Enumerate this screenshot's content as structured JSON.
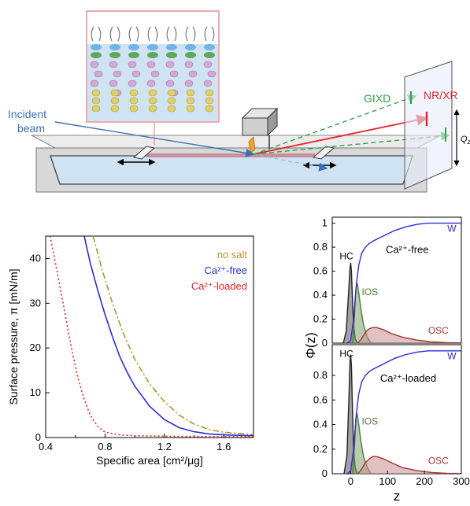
{
  "schematic": {
    "incident_label_line1": "Incident",
    "incident_label_line2": "beam",
    "gixd_label": "GIXD",
    "nrxr_label": "NR/XR",
    "qz_label": "Q",
    "qz_sub": "z",
    "colors": {
      "trough": "#dcdcdc",
      "water": "#cfe3f3",
      "film": "#c98f9a",
      "nr": "#e3262c",
      "gixd": "#2fa04a",
      "beam": "#3a6fb5",
      "inset_border": "#e98f9a"
    }
  },
  "chart_data": [
    {
      "type": "line",
      "ylabel": "Surface pressure, π [mN/m]",
      "xlabel": "Specific area [cm²/μg]",
      "xlim": [
        0.4,
        1.8
      ],
      "ylim": [
        0,
        45
      ],
      "xticks": [
        "0.4",
        "0.8",
        "1.2",
        "1.6"
      ],
      "yticks": [
        "0",
        "10",
        "20",
        "30",
        "40"
      ],
      "legend_position": "top-right",
      "series": [
        {
          "name": "no salt",
          "color": "#b8922a",
          "style": "dashdot",
          "x": [
            0.72,
            0.78,
            0.85,
            0.92,
            1.0,
            1.1,
            1.2,
            1.3,
            1.4,
            1.5,
            1.6,
            1.7,
            1.8
          ],
          "y": [
            45,
            37.5,
            30,
            23.5,
            17.5,
            12,
            8,
            5,
            3,
            1.8,
            1.2,
            0.9,
            0.7
          ]
        },
        {
          "name": "Ca²⁺-free",
          "color": "#2b2bd9",
          "style": "solid",
          "x": [
            0.66,
            0.7,
            0.75,
            0.8,
            0.85,
            0.9,
            0.95,
            1.0,
            1.1,
            1.2,
            1.3,
            1.4,
            1.5,
            1.6,
            1.7,
            1.8
          ],
          "y": [
            45,
            39,
            33,
            27.5,
            22.5,
            18,
            14.5,
            11.5,
            7,
            4,
            2.2,
            1.3,
            0.8,
            0.6,
            0.5,
            0.4
          ]
        },
        {
          "name": "Ca²⁺-loaded",
          "color": "#ee2222",
          "style": "dotted",
          "x": [
            0.43,
            0.46,
            0.5,
            0.54,
            0.58,
            0.62,
            0.66,
            0.7,
            0.75,
            0.8,
            0.9,
            1.0,
            1.2,
            1.5,
            1.8
          ],
          "y": [
            45,
            40,
            33,
            26,
            19,
            13,
            8.5,
            5,
            2.5,
            1.2,
            0.6,
            0.4,
            0.3,
            0.2,
            0.2
          ]
        }
      ]
    },
    {
      "type": "area",
      "ylabel": "Φ(z)",
      "xlabel": "z",
      "xlim": [
        -50,
        300
      ],
      "ylim": [
        0,
        1.05
      ],
      "xticks": [
        "0",
        "100",
        "200",
        "300"
      ],
      "panels": [
        {
          "title": "Ca²⁺-free",
          "yticks": [
            "0",
            "0.2",
            "0.4",
            "0.6",
            "0.8",
            "1"
          ],
          "labels": {
            "HC": "HC",
            "IOS": "IOS",
            "OSC": "OSC",
            "W": "W"
          },
          "series": [
            {
              "name": "HC",
              "color": "#222222",
              "fill": "#555555",
              "x": [
                -20,
                -12,
                -6,
                -2,
                0,
                2,
                5,
                8,
                12,
                18
              ],
              "y": [
                0,
                0.1,
                0.4,
                0.62,
                0.67,
                0.6,
                0.35,
                0.15,
                0.04,
                0
              ]
            },
            {
              "name": "IOS",
              "color": "#4f7a3a",
              "fill": "#7fa36a",
              "x": [
                5,
                10,
                14,
                18,
                22,
                28,
                35,
                45,
                55
              ],
              "y": [
                0,
                0.2,
                0.45,
                0.5,
                0.42,
                0.28,
                0.15,
                0.05,
                0
              ]
            },
            {
              "name": "OSC",
              "color": "#a83232",
              "fill": "#c98f8f",
              "x": [
                20,
                30,
                40,
                50,
                60,
                70,
                90,
                110,
                140,
                180,
                220,
                260,
                300
              ],
              "y": [
                0,
                0.04,
                0.09,
                0.12,
                0.13,
                0.13,
                0.11,
                0.08,
                0.05,
                0.025,
                0.01,
                0.004,
                0.002
              ]
            },
            {
              "name": "W",
              "color": "#2b2bd9",
              "fill": "none",
              "x": [
                -10,
                0,
                8,
                15,
                22,
                30,
                40,
                50,
                60,
                80,
                100,
                120,
                150,
                180,
                210,
                250,
                300
              ],
              "y": [
                0,
                0.02,
                0.2,
                0.48,
                0.65,
                0.75,
                0.8,
                0.83,
                0.85,
                0.88,
                0.91,
                0.94,
                0.97,
                0.99,
                1.0,
                1.0,
                1.0
              ]
            }
          ]
        },
        {
          "title": "Ca²⁺-loaded",
          "yticks": [
            "0",
            "0.2",
            "0.4",
            "0.6",
            "0.8"
          ],
          "labels": {
            "HC": "HC",
            "IOS": "IOS",
            "OSC": "OSC",
            "W": "W"
          },
          "series": [
            {
              "name": "HC",
              "color": "#222222",
              "fill": "#555555",
              "x": [
                -18,
                -10,
                -5,
                -2,
                0,
                2,
                5,
                8,
                12,
                18
              ],
              "y": [
                0,
                0.15,
                0.6,
                0.9,
                0.97,
                0.88,
                0.5,
                0.2,
                0.05,
                0
              ]
            },
            {
              "name": "IOS",
              "color": "#4f7a3a",
              "fill": "#7fa36a",
              "x": [
                5,
                10,
                14,
                18,
                22,
                28,
                35,
                45,
                55
              ],
              "y": [
                0,
                0.2,
                0.45,
                0.48,
                0.4,
                0.26,
                0.14,
                0.05,
                0
              ]
            },
            {
              "name": "OSC",
              "color": "#a83232",
              "fill": "#c98f8f",
              "x": [
                20,
                30,
                40,
                50,
                60,
                70,
                90,
                110,
                140,
                180,
                220,
                260,
                300
              ],
              "y": [
                0,
                0.04,
                0.09,
                0.12,
                0.14,
                0.14,
                0.12,
                0.09,
                0.05,
                0.025,
                0.01,
                0.004,
                0.002
              ]
            },
            {
              "name": "W",
              "color": "#2b2bd9",
              "fill": "none",
              "x": [
                -10,
                0,
                8,
                15,
                22,
                30,
                40,
                50,
                60,
                80,
                100,
                120,
                150,
                180,
                210,
                250,
                300
              ],
              "y": [
                0,
                0.02,
                0.2,
                0.48,
                0.65,
                0.75,
                0.8,
                0.83,
                0.85,
                0.88,
                0.91,
                0.94,
                0.97,
                0.99,
                1.0,
                1.0,
                1.0
              ]
            }
          ]
        }
      ]
    }
  ]
}
